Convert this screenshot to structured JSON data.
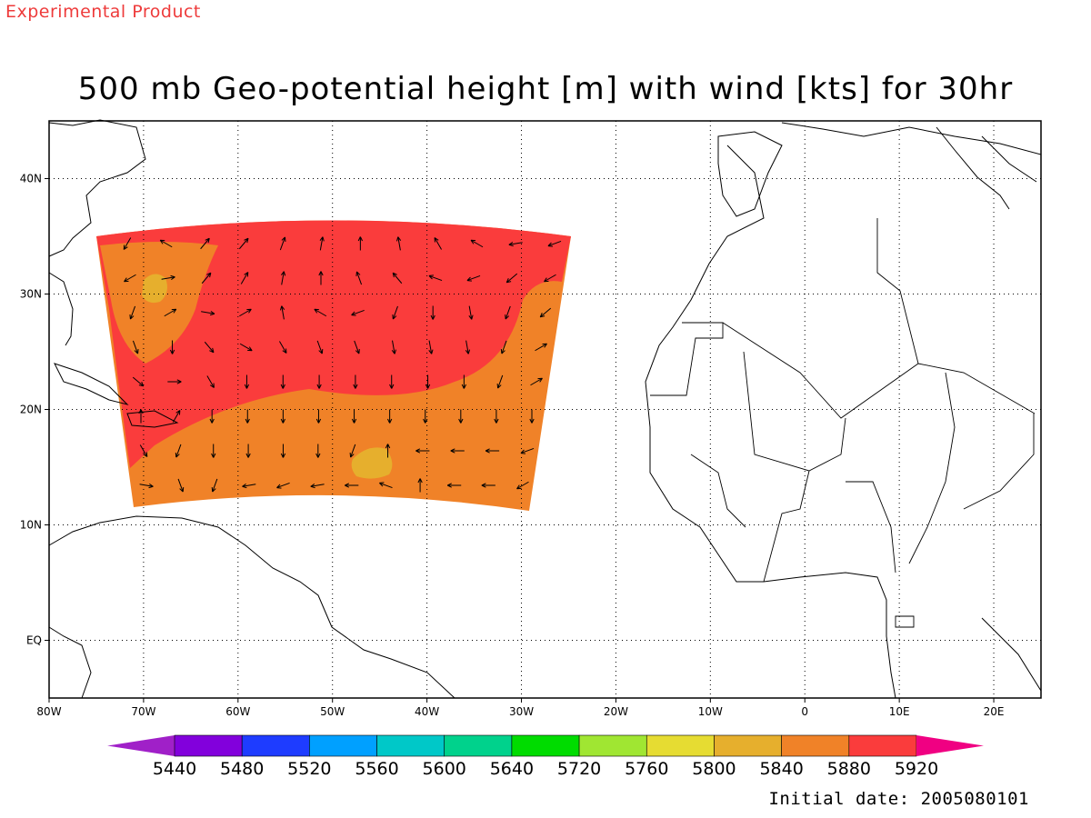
{
  "header": {
    "experimental_label": "Experimental Product",
    "title": "500 mb Geo-potential height [m] with wind [kts] for 30hr"
  },
  "footer": {
    "initial_date": "Initial date: 2005080101"
  },
  "map": {
    "lon_range": [
      -80,
      25
    ],
    "lat_range": [
      -5,
      45
    ],
    "lon_ticks": [
      {
        "lon": -80,
        "label": "80W"
      },
      {
        "lon": -70,
        "label": "70W"
      },
      {
        "lon": -60,
        "label": "60W"
      },
      {
        "lon": -50,
        "label": "50W"
      },
      {
        "lon": -40,
        "label": "40W"
      },
      {
        "lon": -30,
        "label": "30W"
      },
      {
        "lon": -20,
        "label": "20W"
      },
      {
        "lon": -10,
        "label": "10W"
      },
      {
        "lon": 0,
        "label": "0"
      },
      {
        "lon": 10,
        "label": "10E"
      },
      {
        "lon": 20,
        "label": "20E"
      }
    ],
    "lat_ticks": [
      {
        "lat": 0,
        "label": "EQ"
      },
      {
        "lat": 10,
        "label": "10N"
      },
      {
        "lat": 20,
        "label": "20N"
      },
      {
        "lat": 30,
        "label": "30N"
      },
      {
        "lat": 40,
        "label": "40N"
      }
    ],
    "grid": true
  },
  "colorbar": {
    "labels": [
      "5440",
      "5480",
      "5520",
      "5560",
      "5600",
      "5640",
      "5720",
      "5760",
      "5800",
      "5840",
      "5880",
      "5920"
    ],
    "colors": [
      "#a020c8",
      "#8200dc",
      "#1e3cff",
      "#00a0ff",
      "#00c8c8",
      "#00d28c",
      "#00dc00",
      "#a0e632",
      "#e6dc32",
      "#e6af2d",
      "#f08228",
      "#fa3c3c",
      "#f00082"
    ]
  },
  "field": {
    "shaded_levels": [
      {
        "value": 5840,
        "color": "#e6af2d"
      },
      {
        "value": 5880,
        "color": "#f08228"
      },
      {
        "value": 5920,
        "color": "#fa3c3c"
      }
    ],
    "domain_color": "#f08228"
  }
}
